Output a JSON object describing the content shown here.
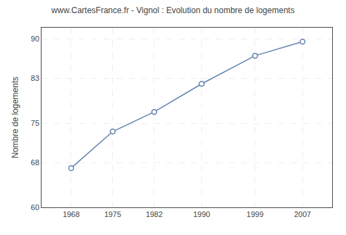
{
  "chart_data": {
    "type": "line",
    "title": "www.CartesFrance.fr - Vignol : Evolution du nombre de logements",
    "ylabel": "Nombre de logements",
    "x": [
      1968,
      1975,
      1982,
      1990,
      1999,
      2007
    ],
    "values": [
      67.0,
      73.5,
      77.0,
      82.0,
      87.0,
      89.5
    ],
    "color": "#6080b0",
    "marker": "circle",
    "xlim": [
      1963,
      2012
    ],
    "ylim": [
      60,
      92
    ],
    "xticks": [
      1968,
      1975,
      1982,
      1990,
      1999,
      2007
    ],
    "yticks": [
      60,
      68,
      75,
      83,
      90
    ],
    "grid": true
  }
}
